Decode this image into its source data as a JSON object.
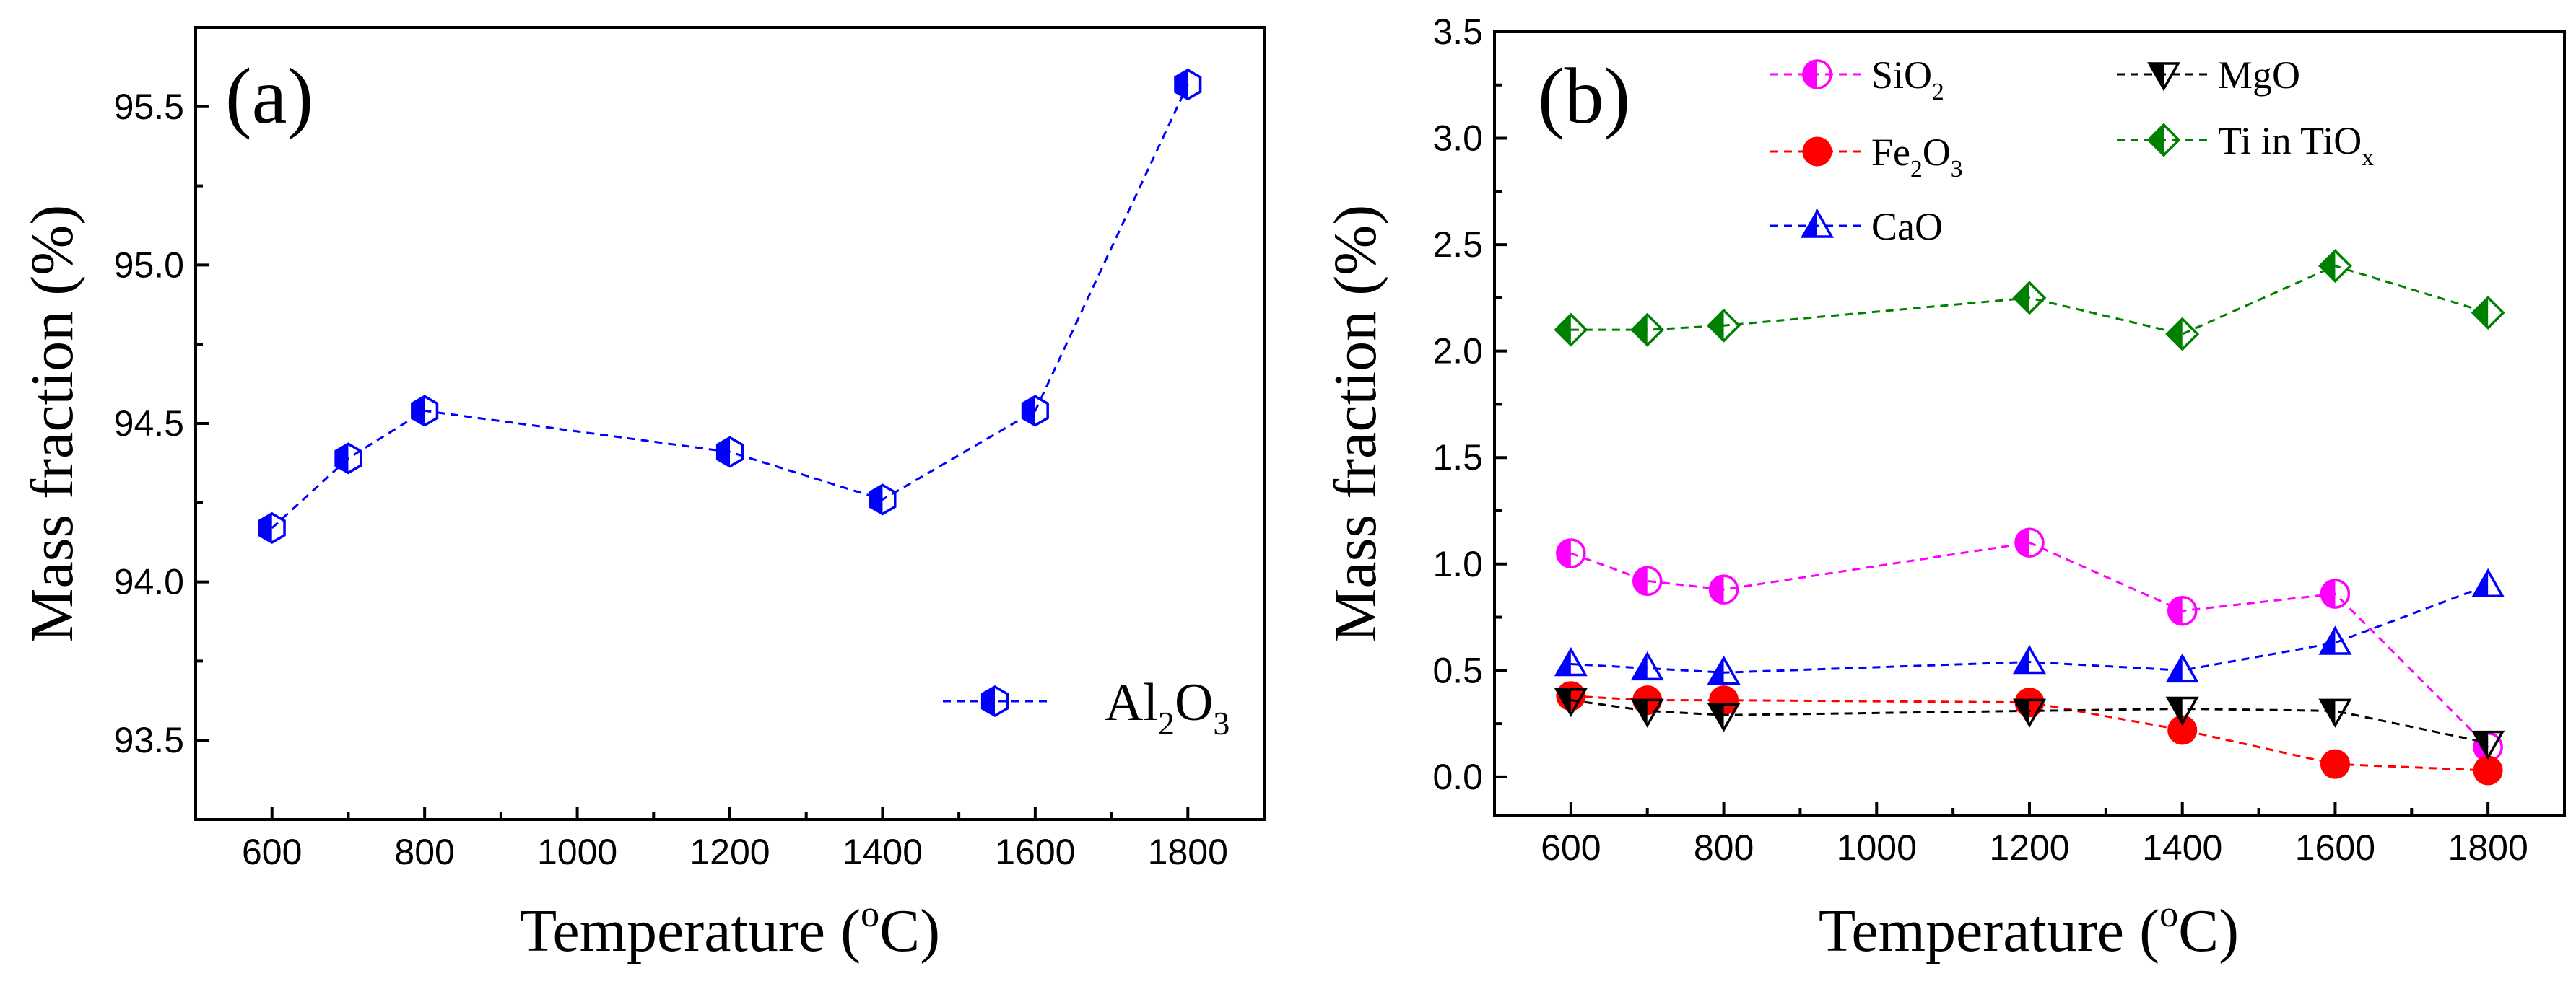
{
  "chart_data": [
    {
      "panel": "(a)",
      "type": "line",
      "xlabel": "Temperature (oC)",
      "xlabel_parts": {
        "pre": "Temperature (",
        "sup": "o",
        "post": "C)"
      },
      "ylabel": "Mass fraction (%)",
      "xlim": [
        500,
        1900
      ],
      "ylim": [
        93.25,
        95.75
      ],
      "xticks": [
        600,
        800,
        1000,
        1200,
        1400,
        1600,
        1800
      ],
      "xtick_labels": [
        "600",
        "800",
        "1000",
        "1200",
        "1400",
        "1600",
        "1800"
      ],
      "yticks": [
        93.5,
        94.0,
        94.5,
        95.0,
        95.5
      ],
      "ytick_labels": [
        "93.5",
        "94.0",
        "94.5",
        "95.0",
        "95.5"
      ],
      "legend_position": "bottom-right",
      "series": [
        {
          "name": "Al2O3",
          "label_parts": [
            "Al",
            "2",
            "O",
            "3"
          ],
          "color": "#0000FF",
          "marker": "hexagon-half",
          "x": [
            600,
            700,
            800,
            1200,
            1400,
            1600,
            1800
          ],
          "values": [
            94.17,
            94.39,
            94.54,
            94.41,
            94.26,
            94.54,
            95.57
          ]
        }
      ]
    },
    {
      "panel": "(b)",
      "type": "line",
      "xlabel": "Temperature (oC)",
      "xlabel_parts": {
        "pre": "Temperature (",
        "sup": "o",
        "post": "C)"
      },
      "ylabel": "Mass fraction (%)",
      "xlim": [
        500,
        1900
      ],
      "ylim": [
        -0.18,
        3.5
      ],
      "xticks": [
        600,
        800,
        1000,
        1200,
        1400,
        1600,
        1800
      ],
      "xtick_labels": [
        "600",
        "800",
        "1000",
        "1200",
        "1400",
        "1600",
        "1800"
      ],
      "yticks": [
        0.0,
        0.5,
        1.0,
        1.5,
        2.0,
        2.5,
        3.0,
        3.5
      ],
      "ytick_labels": [
        "0.0",
        "0.5",
        "1.0",
        "1.5",
        "2.0",
        "2.5",
        "3.0",
        "3.5"
      ],
      "legend_position": "top",
      "series": [
        {
          "name": "SiO2",
          "label_parts": [
            "SiO",
            "2"
          ],
          "color": "#FF00FF",
          "marker": "circle-half",
          "x": [
            600,
            700,
            800,
            1200,
            1400,
            1600,
            1800
          ],
          "values": [
            1.05,
            0.92,
            0.88,
            1.1,
            0.78,
            0.86,
            0.14
          ]
        },
        {
          "name": "Fe2O3",
          "label_parts": [
            "Fe",
            "2",
            "O",
            "3"
          ],
          "color": "#FF0000",
          "marker": "circle-filled",
          "x": [
            600,
            700,
            800,
            1200,
            1400,
            1600,
            1800
          ],
          "values": [
            0.38,
            0.36,
            0.36,
            0.35,
            0.22,
            0.06,
            0.03
          ]
        },
        {
          "name": "CaO",
          "label_parts": [
            "CaO"
          ],
          "color": "#0000FF",
          "marker": "triangle-up-half",
          "x": [
            600,
            700,
            800,
            1200,
            1400,
            1600,
            1800
          ],
          "values": [
            0.53,
            0.51,
            0.49,
            0.54,
            0.5,
            0.63,
            0.9
          ]
        },
        {
          "name": "MgO",
          "label_parts": [
            "MgO"
          ],
          "color": "#000000",
          "marker": "triangle-down-half",
          "x": [
            600,
            700,
            800,
            1200,
            1400,
            1600,
            1800
          ],
          "values": [
            0.36,
            0.31,
            0.29,
            0.31,
            0.32,
            0.31,
            0.16
          ]
        },
        {
          "name": "Ti in TiOx",
          "label_parts": [
            "Ti in TiO",
            "x"
          ],
          "color": "#008000",
          "marker": "diamond-half",
          "x": [
            600,
            700,
            800,
            1200,
            1400,
            1600,
            1800
          ],
          "values": [
            2.1,
            2.1,
            2.12,
            2.25,
            2.08,
            2.4,
            2.18
          ]
        }
      ]
    }
  ]
}
